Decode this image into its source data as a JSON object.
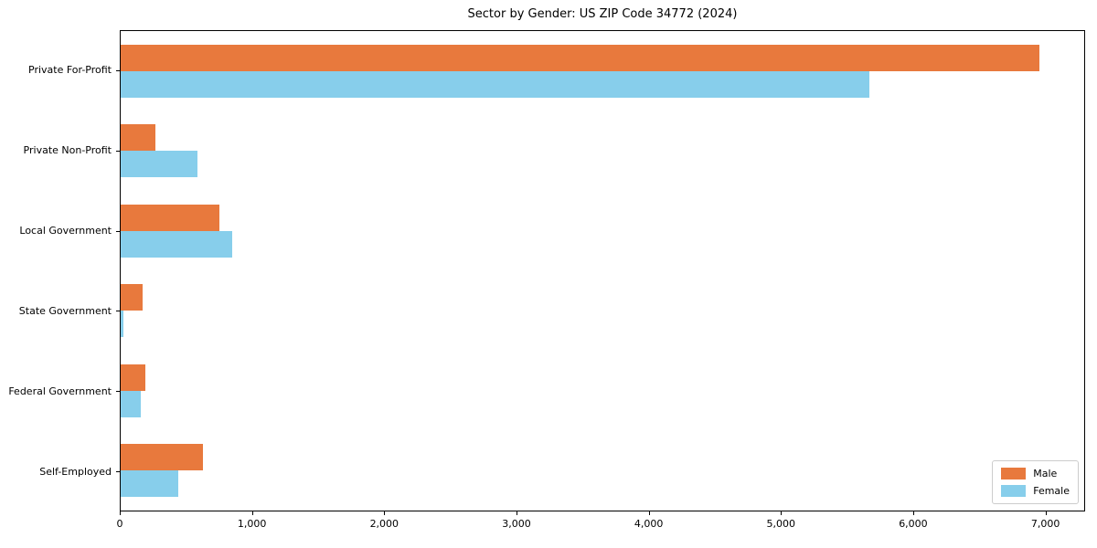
{
  "title": "Sector by Gender: US ZIP Code 34772 (2024)",
  "colors": {
    "male": "#e8793d",
    "female": "#87ceeb",
    "spine": "#000000",
    "legend_border": "#cccccc",
    "background": "#ffffff"
  },
  "legend": {
    "items": [
      {
        "label": "Male",
        "color": "#e8793d"
      },
      {
        "label": "Female",
        "color": "#87ceeb"
      }
    ],
    "position": "lower right"
  },
  "chart_data": {
    "type": "bar",
    "orientation": "horizontal",
    "title": "Sector by Gender: US ZIP Code 34772 (2024)",
    "xlabel": "",
    "ylabel": "",
    "categories": [
      "Private For-Profit",
      "Private Non-Profit",
      "Local Government",
      "State Government",
      "Federal Government",
      "Self-Employed"
    ],
    "series": [
      {
        "name": "Male",
        "color": "#e8793d",
        "values": [
          6960,
          260,
          750,
          165,
          185,
          625
        ]
      },
      {
        "name": "Female",
        "color": "#87ceeb",
        "values": [
          5670,
          585,
          845,
          20,
          150,
          435
        ]
      }
    ],
    "xlim": [
      0,
      7300
    ],
    "xticks": [
      0,
      1000,
      2000,
      3000,
      4000,
      5000,
      6000,
      7000
    ],
    "xtick_labels": [
      "0",
      "1,000",
      "2,000",
      "3,000",
      "4,000",
      "5,000",
      "6,000",
      "7,000"
    ],
    "grid": false,
    "legend_position": "lower right"
  }
}
